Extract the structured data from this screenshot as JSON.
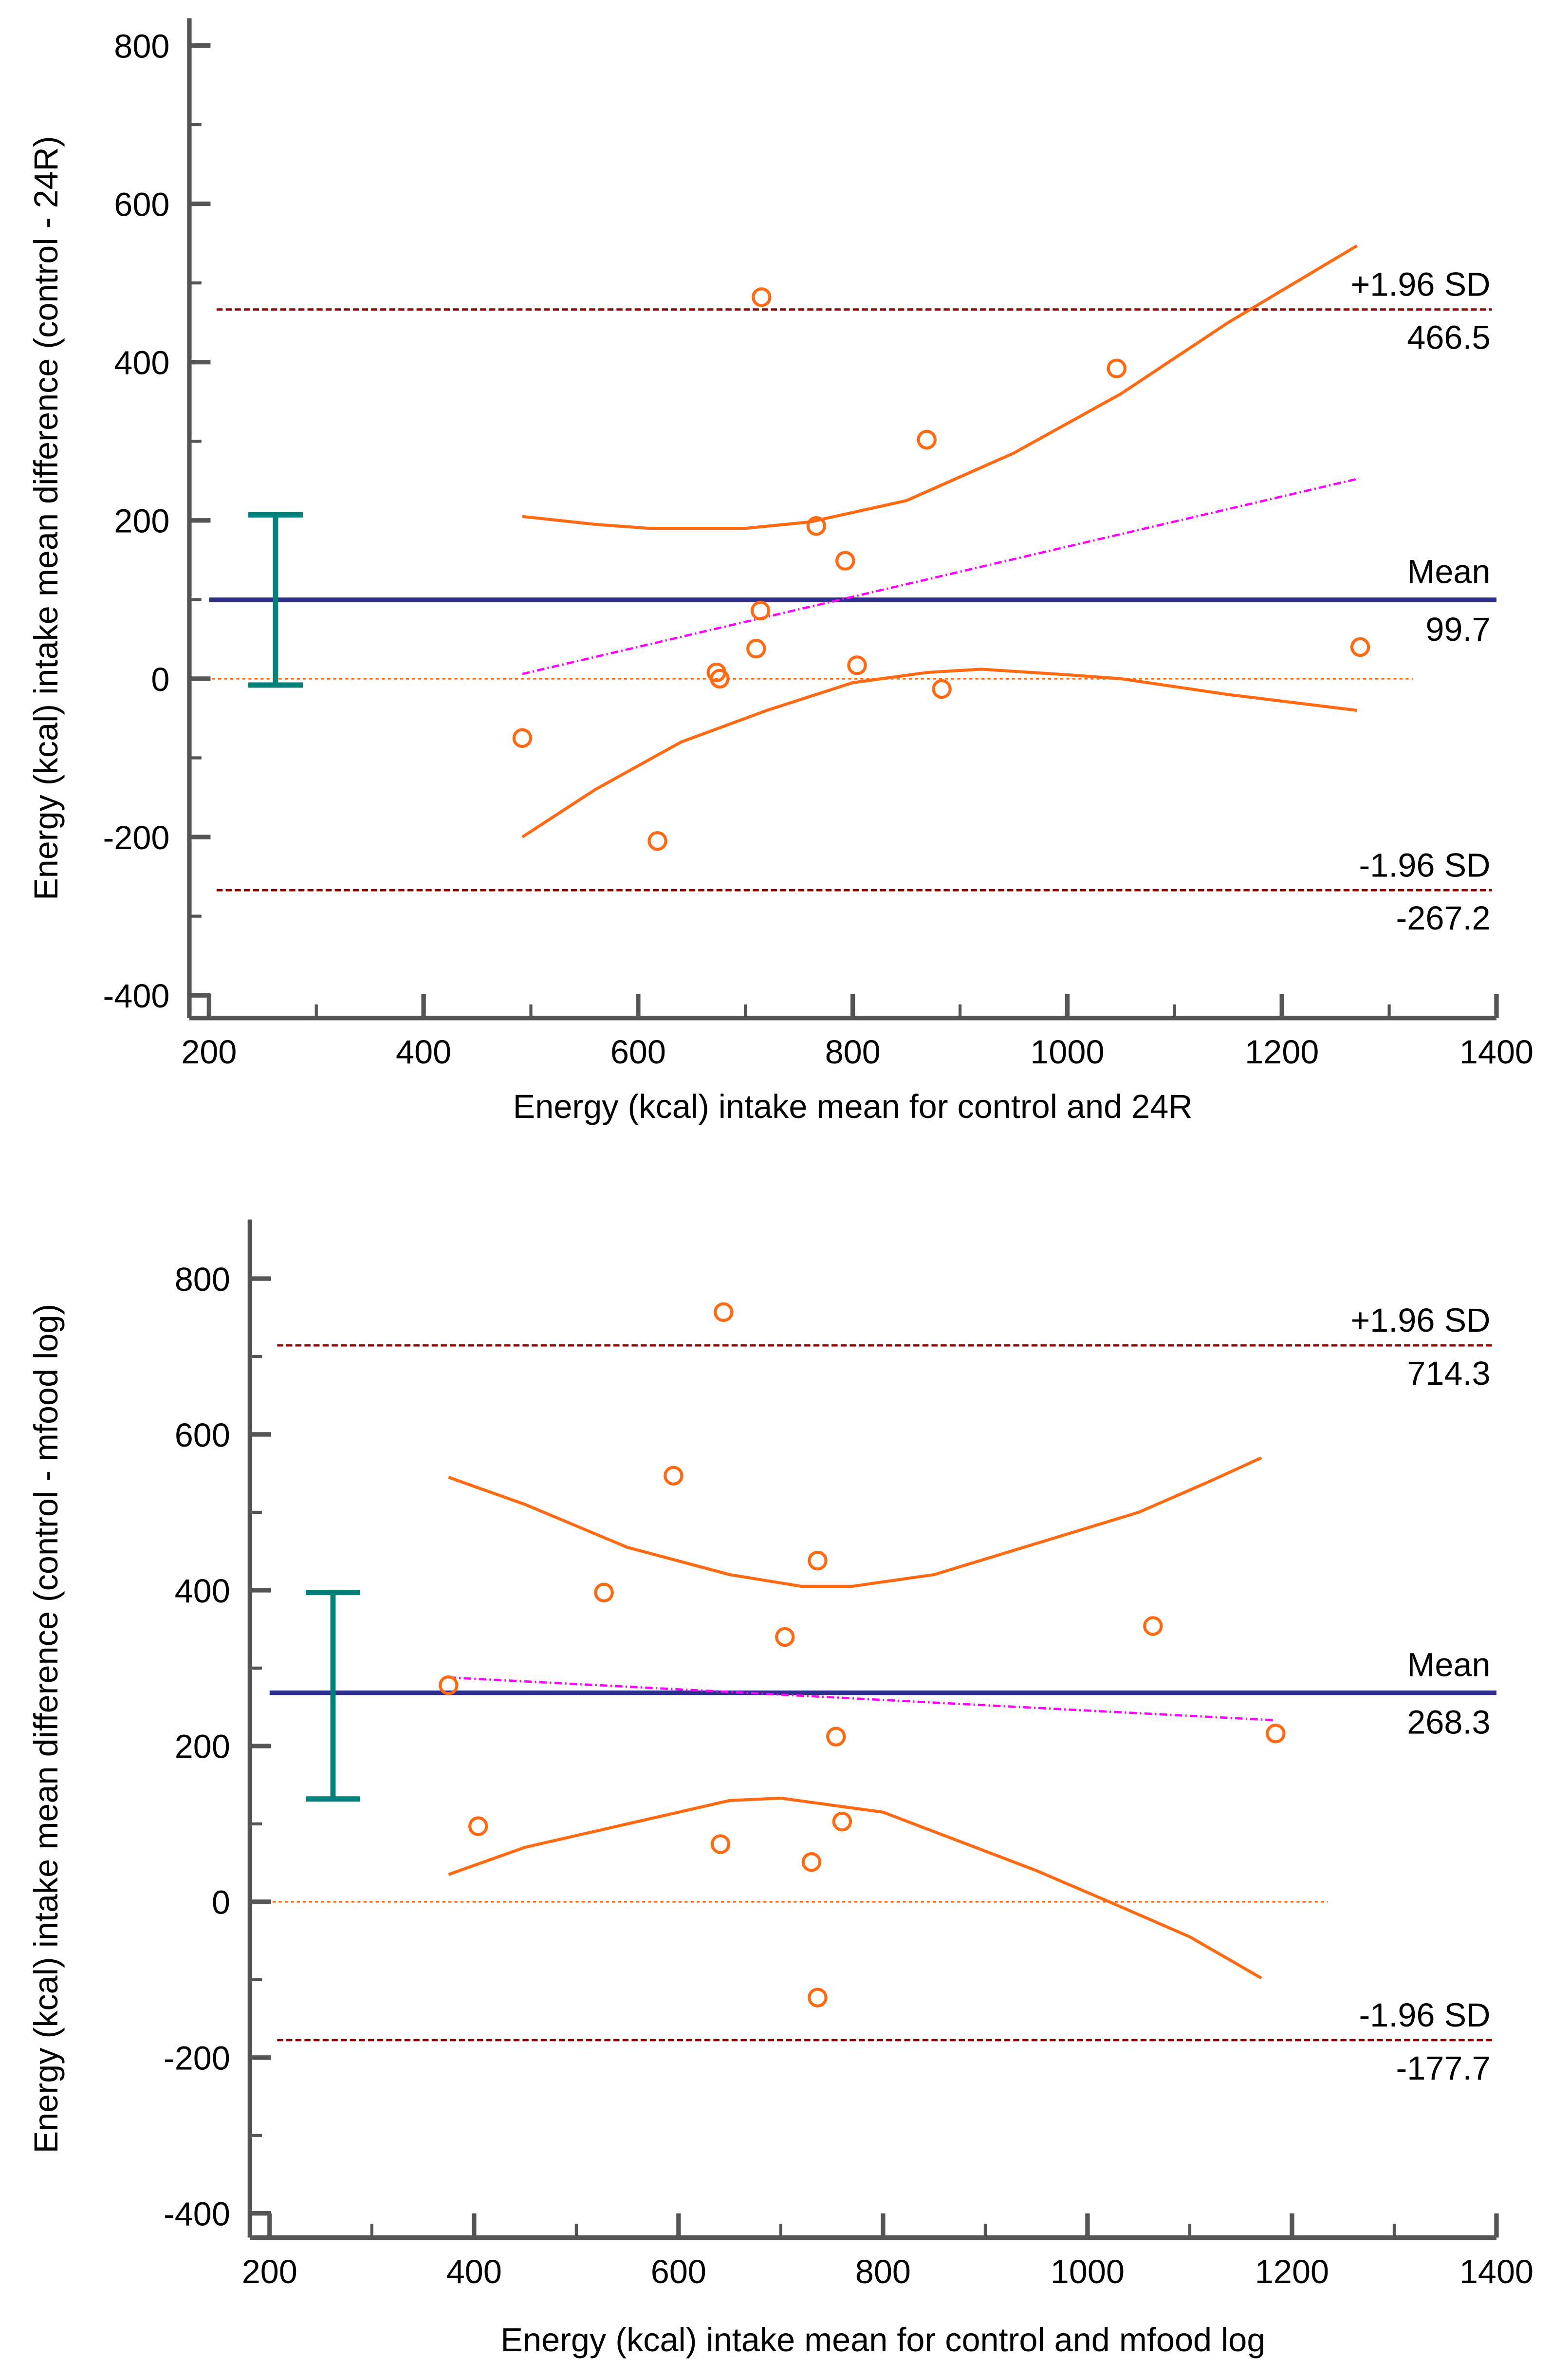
{
  "colors": {
    "axis": "#555555",
    "points": "#ff6a13",
    "ci": "#ff6a13",
    "mean": "#2e2e8f",
    "limits": "#8b0000",
    "zero": "#ff6a13",
    "regression": "#ff00ff",
    "errorbar": "#00807a"
  },
  "chart_data": [
    {
      "type": "scatter",
      "title": "",
      "xlabel": "Energy (kcal) intake mean for control and 24R",
      "ylabel": "Energy (kcal) intake mean difference (control - 24R)",
      "xlim": [
        200,
        1400
      ],
      "ylim": [
        -400,
        800
      ],
      "xticks": [
        "200",
        "400",
        "600",
        "800",
        "1000",
        "1200",
        "1400"
      ],
      "yticks": [
        "-400",
        "-200",
        "0",
        "200",
        "400",
        "600",
        "800"
      ],
      "points": [
        [
          715,
          482
        ],
        [
          869,
          302
        ],
        [
          1046,
          392
        ],
        [
          766,
          193
        ],
        [
          793,
          149
        ],
        [
          714,
          86
        ],
        [
          710,
          38
        ],
        [
          673,
          8
        ],
        [
          676,
          0
        ],
        [
          804,
          17
        ],
        [
          883,
          -13
        ],
        [
          1273,
          40
        ],
        [
          492,
          -75
        ],
        [
          618,
          -205
        ]
      ],
      "mean": 99.7,
      "mean_label": "Mean",
      "mean_value": "99.7",
      "upper_loa": 466.5,
      "upper_label": "+1.96 SD",
      "upper_value": "466.5",
      "lower_loa": -267.2,
      "lower_label": "-1.96 SD",
      "lower_value": "-267.2",
      "zero_line_xmax": 1322,
      "regression": [
        [
          492,
          6
        ],
        [
          1272,
          253
        ]
      ],
      "ci_upper": [
        [
          492,
          205
        ],
        [
          560,
          195
        ],
        [
          610,
          190
        ],
        [
          700,
          190
        ],
        [
          760,
          198
        ],
        [
          850,
          225
        ],
        [
          950,
          285
        ],
        [
          1050,
          360
        ],
        [
          1150,
          450
        ],
        [
          1270,
          547
        ]
      ],
      "ci_lower": [
        [
          492,
          -200
        ],
        [
          560,
          -140
        ],
        [
          640,
          -80
        ],
        [
          720,
          -40
        ],
        [
          800,
          -5
        ],
        [
          870,
          8
        ],
        [
          920,
          12
        ],
        [
          1000,
          5
        ],
        [
          1050,
          0
        ],
        [
          1150,
          -20
        ],
        [
          1270,
          -40
        ]
      ],
      "mean_ci": {
        "x": 262,
        "low": -8,
        "high": 207
      }
    },
    {
      "type": "scatter",
      "title": "",
      "xlabel": "Energy (kcal) intake mean for control and mfood log",
      "ylabel": "Energy (kcal) intake mean difference (control - mfood log)",
      "xlim": [
        200,
        1400
      ],
      "ylim": [
        -400,
        800
      ],
      "xticks": [
        "200",
        "400",
        "600",
        "800",
        "1000",
        "1200",
        "1400"
      ],
      "yticks": [
        "-400",
        "-200",
        "0",
        "200",
        "400",
        "600",
        "800"
      ],
      "points": [
        [
          644,
          757
        ],
        [
          595,
          547
        ],
        [
          736,
          438
        ],
        [
          527,
          397
        ],
        [
          704,
          340
        ],
        [
          1064,
          354
        ],
        [
          375,
          278
        ],
        [
          754,
          212
        ],
        [
          1184,
          216
        ],
        [
          760,
          103
        ],
        [
          404,
          97
        ],
        [
          641,
          74
        ],
        [
          730,
          51
        ],
        [
          736,
          -123
        ]
      ],
      "mean": 268.3,
      "mean_label": "Mean",
      "mean_value": "268.3",
      "upper_loa": 714.3,
      "upper_label": "+1.96 SD",
      "upper_value": "714.3",
      "lower_loa": -177.7,
      "lower_label": "-1.96 SD",
      "lower_value": "-177.7",
      "zero_line_xmax": 1235,
      "regression": [
        [
          375,
          288
        ],
        [
          1184,
          233
        ]
      ],
      "ci_upper": [
        [
          375,
          545
        ],
        [
          450,
          510
        ],
        [
          550,
          455
        ],
        [
          650,
          420
        ],
        [
          720,
          405
        ],
        [
          770,
          405
        ],
        [
          850,
          420
        ],
        [
          950,
          460
        ],
        [
          1050,
          500
        ],
        [
          1120,
          540
        ],
        [
          1170,
          570
        ]
      ],
      "ci_lower": [
        [
          375,
          35
        ],
        [
          450,
          70
        ],
        [
          550,
          100
        ],
        [
          650,
          130
        ],
        [
          700,
          133
        ],
        [
          800,
          115
        ],
        [
          880,
          75
        ],
        [
          950,
          40
        ],
        [
          1030,
          -5
        ],
        [
          1100,
          -45
        ],
        [
          1170,
          -98
        ]
      ],
      "mean_ci": {
        "x": 262,
        "low": 132,
        "high": 397
      }
    }
  ]
}
